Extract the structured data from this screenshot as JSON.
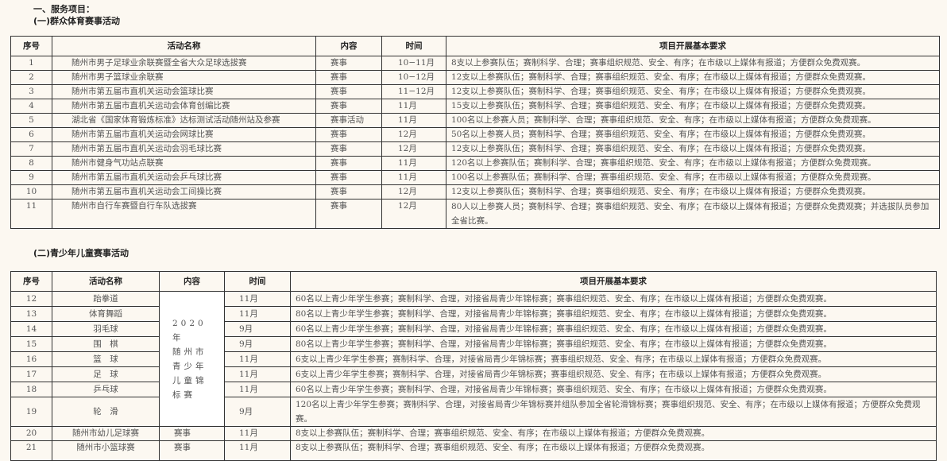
{
  "heading": "一、服务项目：",
  "section1": {
    "title": "(一)群众体育赛事活动",
    "headers": [
      "序号",
      "活动名称",
      "内容",
      "时间",
      "项目开展基本要求"
    ],
    "rows": [
      [
        "1",
        "随州市男子足球业余联赛暨全省大众足球选拔赛",
        "赛事",
        "10−11月",
        "8支以上参赛队伍；赛制科学、合理；赛事组织规范、安全、有序；在市级以上媒体有报道；方便群众免费观赛。"
      ],
      [
        "2",
        "随州市男子篮球业余联赛",
        "赛事",
        "10−12月",
        "12支以上参赛队伍；赛制科学、合理；赛事组织规范、安全、有序；在市级以上媒体有报道；方便群众免费观赛。"
      ],
      [
        "3",
        "随州市第五届市直机关运动会篮球比赛",
        "赛事",
        "11−12月",
        "12支以上参赛队伍；赛制科学、合理；赛事组织规范、安全、有序；在市级以上媒体有报道；方便群众免费观赛。"
      ],
      [
        "4",
        "随州市第五届市直机关运动会体育创编比赛",
        "赛事",
        "11月",
        "15支以上参赛队伍；赛制科学、合理；赛事组织规范、安全、有序；在市级以上媒体有报道；方便群众免费观赛。"
      ],
      [
        "5",
        "湖北省《国家体育锻炼标准》达标测试活动随州站及参赛",
        "赛事活动",
        "11月",
        "100名以上参赛人员；赛制科学、合理；赛事组织规范、安全、有序；在市级以上媒体有报道；方便群众免费观赛。"
      ],
      [
        "6",
        "随州市第五届市直机关运动会网球比赛",
        "赛事",
        "12月",
        "50名以上参赛人员；赛制科学、合理；赛事组织规范、安全、有序；在市级以上媒体有报道；方便群众免费观赛。"
      ],
      [
        "7",
        "随州市第五届市直机关运动会羽毛球比赛",
        "赛事",
        "12月",
        "12支以上参赛队伍；赛制科学、合理；赛事组织规范、安全、有序；在市级以上媒体有报道；方便群众免费观赛。"
      ],
      [
        "8",
        "随州市健身气功站点联赛",
        "赛事",
        "11月",
        "120名以上参赛队伍；赛制科学、合理；赛事组织规范、安全、有序；在市级以上媒体有报道；方便群众免费观赛。"
      ],
      [
        "9",
        "随州市第五届市直机关运动会乒乓球比赛",
        "赛事",
        "11月",
        "100名以上参赛队伍；赛制科学、合理；赛事组织规范、安全、有序；在市级以上媒体有报道；方便群众免费观赛。"
      ],
      [
        "10",
        "随州市第五届市直机关运动会工间操比赛",
        "赛事",
        "12月",
        "12支以上参赛队伍；赛制科学、合理；赛事组织规范、安全、有序；在市级以上媒体有报道；方便群众免费观赛。"
      ],
      [
        "11",
        "随州市自行车赛暨自行车队选拔赛",
        "赛事",
        "12月",
        "80人以上参赛人员；赛制科学、合理；赛事组织规范、安全、有序；在市级以上媒体有报道；方便群众免费观赛；并选拔队员参加全省比赛。"
      ]
    ]
  },
  "section2": {
    "title": "(二)青少年儿童赛事活动",
    "headers": [
      "序号",
      "活动名称",
      "内容",
      "时间",
      "项目开展基本要求"
    ],
    "merged_content": "2020 年\n随州市\n青少年\n儿童锦\n标赛",
    "rows": [
      [
        "12",
        "跆拳道",
        "",
        "11月",
        "60名以上青少年学生参赛；赛制科学、合理，对接省局青少年锦标赛；赛事组织规范、安全、有序；在市级以上媒体有报道；方便群众免费观赛。"
      ],
      [
        "13",
        "体育舞蹈",
        "",
        "11月",
        "80名以上青少年学生参赛；赛制科学、合理，对接省局青少年锦标赛；赛事组织规范、安全、有序；在市级以上媒体有报道；方便群众免费观赛。"
      ],
      [
        "14",
        "羽毛球",
        "",
        "9月",
        "60名以上青少年学生参赛；赛制科学、合理，对接省局青少年锦标赛；赛事组织规范、安全、有序；在市级以上媒体有报道；方便群众免费观赛。"
      ],
      [
        "15",
        "围　棋",
        "",
        "9月",
        "80名以上青少年学生参赛；赛制科学、合理，对接省局青少年锦标赛；赛事组织规范、安全、有序；在市级以上媒体有报道；方便群众免费观赛。"
      ],
      [
        "16",
        "篮　球",
        "",
        "11月",
        "6支以上青少年学生参赛；赛制科学、合理，对接省局青少年锦标赛；赛事组织规范、安全、有序；在市级以上媒体有报道；方便群众免费观赛。"
      ],
      [
        "17",
        "足　球",
        "",
        "11月",
        "6支以上青少年学生参赛；赛制科学、合理，对接省局青少年锦标赛；赛事组织规范、安全、有序；在市级以上媒体有报道；方便群众免费观赛。"
      ],
      [
        "18",
        "乒乓球",
        "",
        "11月",
        "60名以上青少年学生参赛；赛制科学、合理，对接省局青少年锦标赛；赛事组织规范、安全、有序；在市级以上媒体有报道；方便群众免费观赛。"
      ],
      [
        "19",
        "轮　滑",
        "",
        "9月",
        "120名以上青少年学生参赛；赛制科学、合理，对接省局青少年锦标赛并组队参加全省轮滑锦标赛；赛事组织规范、安全、有序；在市级以上媒体有报道；方便群众免费观赛。"
      ],
      [
        "20",
        "随州市幼儿足球赛",
        "赛事",
        "11月",
        "8支以上参赛队伍；赛制科学、合理；赛事组织规范、安全、有序；在市级以上媒体有报道；方便群众免费观赛。"
      ],
      [
        "21",
        "随州市小篮球赛",
        "赛事",
        "11月",
        "8支以上参赛队伍；赛制科学、合理；赛事组织规范、安全、有序；在市级以上媒体有报道；方便群众免费观赛。"
      ]
    ]
  }
}
